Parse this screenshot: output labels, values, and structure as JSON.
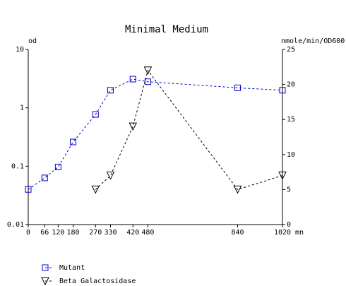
{
  "chart_data": {
    "type": "line",
    "title": "Minimal Medium",
    "ylabel": "od",
    "y2label": "nmole/min/OD600",
    "xlabel": "mn",
    "xlim": [
      0,
      1020
    ],
    "xticks": [
      0,
      66,
      120,
      180,
      270,
      330,
      420,
      480,
      840,
      1020
    ],
    "ylim": [
      0.01,
      10
    ],
    "yticks": [
      0.01,
      0.1,
      1,
      10
    ],
    "ylog": true,
    "y2lim": [
      0,
      25
    ],
    "y2ticks": [
      0,
      5,
      10,
      15,
      20,
      25
    ],
    "series": [
      {
        "name": "Mutant",
        "color": "#0000cc",
        "marker": "square",
        "x": [
          0,
          66,
          120,
          180,
          270,
          330,
          420,
          480,
          840,
          1020
        ],
        "values": [
          0.04,
          0.063,
          0.097,
          0.26,
          0.77,
          2.0,
          3.1,
          2.8,
          2.2,
          2.0
        ]
      },
      {
        "name": "Beta Galactosidase",
        "color": "#000000",
        "marker": "triangle-down",
        "axis": "y2",
        "x": [
          270,
          330,
          420,
          480,
          840,
          1020
        ],
        "values": [
          5,
          7,
          14,
          22,
          5,
          7
        ]
      }
    ]
  }
}
